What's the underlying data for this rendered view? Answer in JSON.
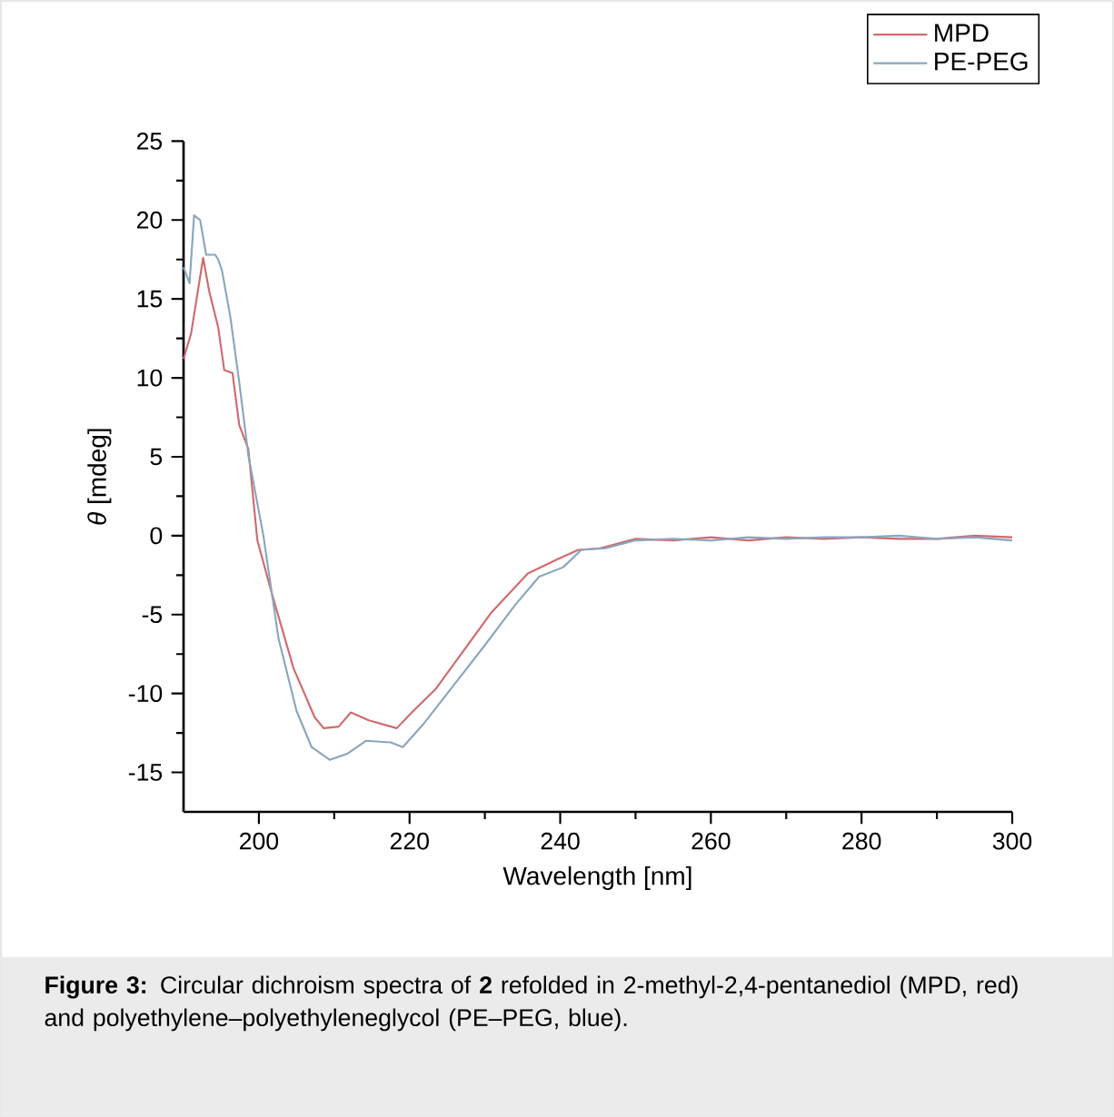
{
  "chart_data": {
    "type": "line",
    "xlabel": "Wavelength [nm]",
    "ylabel": "*θ* [mdeg]",
    "xlim": [
      190,
      300
    ],
    "ylim": [
      -17.5,
      25
    ],
    "xticks": [
      200,
      220,
      240,
      260,
      280,
      300
    ],
    "yticks": [
      -15,
      -10,
      -5,
      0,
      5,
      10,
      15,
      20,
      25
    ],
    "legend": "top right",
    "marker": "none",
    "line_style": "solid",
    "series": [
      {
        "name": "MPD",
        "color": "#d06a6e",
        "x": [
          190,
          191,
          192.6,
          193.4,
          194.6,
          195.4,
          196.5,
          197.4,
          198.6,
          199.8,
          201.8,
          204.6,
          207.4,
          208.6,
          210.6,
          212.2,
          214.6,
          218.3,
          220.3,
          223.5,
          226.7,
          230.8,
          235.7,
          239.6,
          242.4,
          245.3,
          250,
          255,
          260,
          265,
          270,
          275,
          280,
          285,
          290,
          295,
          300
        ],
        "values": [
          11.2,
          12.8,
          17.6,
          15.5,
          13.2,
          10.5,
          10.3,
          7,
          5.5,
          -0.3,
          -3.8,
          -8.4,
          -11.5,
          -12.2,
          -12.1,
          -11.2,
          -11.7,
          -12.2,
          -11.2,
          -9.7,
          -7.6,
          -4.9,
          -2.4,
          -1.5,
          -0.9,
          -0.8,
          -0.2,
          -0.3,
          -0.1,
          -0.3,
          -0.1,
          -0.2,
          -0.1,
          -0.2,
          -0.2,
          0,
          -0.1
        ]
      },
      {
        "name": "PE-PEG",
        "color": "#8aa6bf",
        "x": [
          190,
          190.8,
          191.4,
          192.2,
          193,
          194.2,
          194.6,
          195.1,
          196.2,
          197.4,
          198.6,
          200.6,
          202.6,
          205,
          207,
          209.4,
          211.8,
          214.2,
          217.5,
          219.1,
          221.9,
          225.5,
          229.9,
          234,
          237.2,
          240.4,
          242.8,
          246,
          250,
          255,
          260,
          265,
          270,
          275,
          280,
          285,
          290,
          295,
          300
        ],
        "values": [
          17,
          16,
          20.3,
          20,
          17.8,
          17.8,
          17.5,
          16.8,
          13.9,
          9.7,
          5.1,
          0,
          -6.5,
          -11.1,
          -13.4,
          -14.2,
          -13.8,
          -13,
          -13.1,
          -13.4,
          -11.9,
          -9.7,
          -7,
          -4.4,
          -2.6,
          -2,
          -0.9,
          -0.8,
          -0.3,
          -0.2,
          -0.3,
          -0.1,
          -0.2,
          -0.1,
          -0.1,
          0,
          -0.2,
          -0.1,
          -0.3
        ]
      }
    ],
    "annotations": [
      "**Figure 3:** Circular dichroism spectra of **2** refolded in 2-methyl-2,4-pentanediol (MPD, red) and polyethylene–polyethyleneglycol (PE–PEG, blue)."
    ]
  }
}
